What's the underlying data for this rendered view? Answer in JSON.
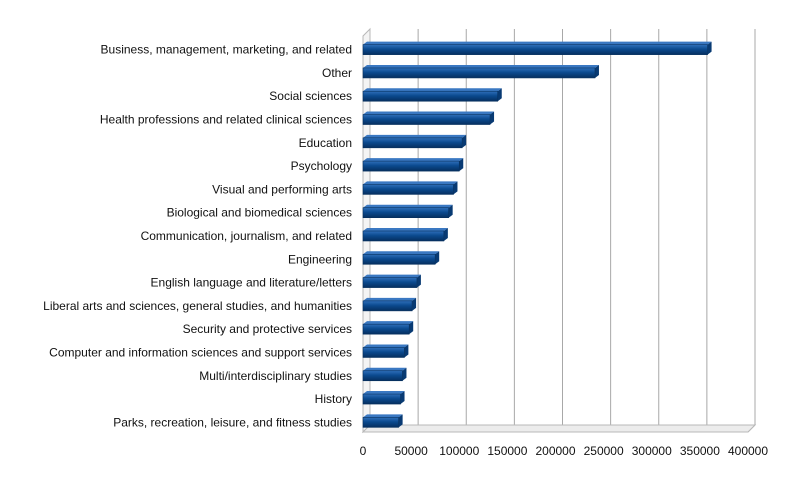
{
  "chart_data": {
    "type": "bar",
    "orientation": "horizontal",
    "style": "3d",
    "title": "",
    "xlabel": "",
    "ylabel": "",
    "categories": [
      "Business, management, marketing, and related",
      "Other",
      "Social sciences",
      "Health professions and related clinical sciences",
      "Education",
      "Psychology",
      "Visual and performing arts",
      "Biological and biomedical sciences",
      "Communication, journalism, and related",
      "Engineering",
      "English language and literature/letters",
      "Liberal arts and sciences, general studies, and humanities",
      "Security and protective services",
      "Computer and information sciences and support services",
      "Multi/interdisciplinary studies",
      "History",
      "Parks, recreation, leisure, and fitness studies"
    ],
    "values": [
      358000,
      241000,
      140000,
      132000,
      103000,
      100000,
      94000,
      89000,
      84000,
      75000,
      56000,
      51000,
      48000,
      43000,
      41000,
      39000,
      37000
    ],
    "xlim": [
      0,
      400000
    ],
    "xticks": [
      "0",
      "50000",
      "100000",
      "150000",
      "200000",
      "250000",
      "300000",
      "350000",
      "400000"
    ],
    "grid": "vertical",
    "legend": "none",
    "bar_color": "#0b4a8f"
  }
}
